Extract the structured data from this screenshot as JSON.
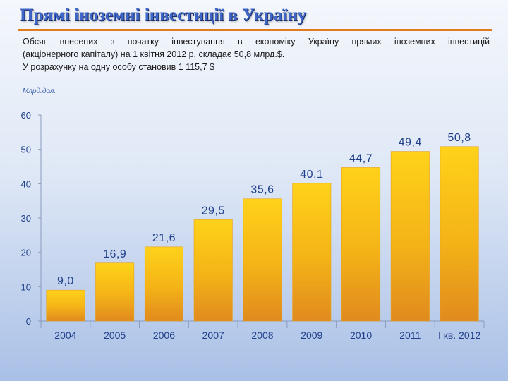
{
  "header": {
    "title": "Прямі іноземні інвестиції в Україну"
  },
  "description": {
    "line1": "Обсяг внесених з початку інвестування в економіку Україну прямих іноземних інвестицій",
    "line2": "(акціонерного капіталу) на 1 квітня 2012 р. складає 50,8 млрд.$.",
    "line3": "У розрахунку на одну особу становив 1 115,7 $"
  },
  "colors": {
    "title": "#3f67c8",
    "rule": "#e07a1c",
    "bar_top": "#ffd21a",
    "bar_bottom": "#e08a1e",
    "value_label": "#1f3f8a",
    "axis_label": "#1f3f8a"
  },
  "chart_data": {
    "type": "bar",
    "unit_label": "Млрд.дол.",
    "categories": [
      "2004",
      "2005",
      "2006",
      "2007",
      "2008",
      "2009",
      "2010",
      "2011",
      "I кв. 2012"
    ],
    "values": [
      9.0,
      16.9,
      21.6,
      29.5,
      35.6,
      40.1,
      44.7,
      49.4,
      50.8
    ],
    "value_labels": [
      "9,0",
      "16,9",
      "21,6",
      "29,5",
      "35,6",
      "40,1",
      "44,7",
      "49,4",
      "50,8"
    ],
    "ylim": [
      0,
      60
    ],
    "yticks": [
      "0",
      "10",
      "20",
      "30",
      "40",
      "50",
      "60"
    ],
    "ytick_values": [
      0,
      10,
      20,
      30,
      40,
      50,
      60
    ],
    "grid": false,
    "legend": "none"
  }
}
